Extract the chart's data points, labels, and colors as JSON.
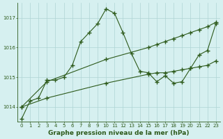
{
  "line1": {
    "x": [
      0,
      1,
      2,
      3,
      4,
      5,
      6,
      7,
      8,
      9,
      10,
      11,
      12,
      13,
      14,
      15,
      16,
      17,
      18,
      19,
      20,
      21,
      22,
      23
    ],
    "y": [
      1013.6,
      1014.2,
      1014.3,
      1014.9,
      1014.9,
      1015.0,
      1015.4,
      1016.2,
      1016.5,
      1016.8,
      1017.3,
      1017.15,
      1016.5,
      1015.8,
      1015.2,
      1015.15,
      1014.85,
      1015.05,
      1014.8,
      1014.85,
      1015.3,
      1015.75,
      1015.9,
      1016.8
    ]
  },
  "line2": {
    "x": [
      0,
      3,
      10,
      15,
      16,
      17,
      18,
      19,
      20,
      21,
      22,
      23
    ],
    "y": [
      1014.0,
      1014.85,
      1015.6,
      1016.0,
      1016.1,
      1016.2,
      1016.3,
      1016.4,
      1016.5,
      1016.6,
      1016.7,
      1016.85
    ]
  },
  "line3": {
    "x": [
      0,
      3,
      10,
      15,
      16,
      17,
      18,
      19,
      20,
      21,
      22,
      23
    ],
    "y": [
      1014.0,
      1014.3,
      1014.8,
      1015.1,
      1015.15,
      1015.15,
      1015.2,
      1015.25,
      1015.3,
      1015.35,
      1015.4,
      1015.55
    ]
  },
  "line_color": "#2d5a1b",
  "bg_color": "#d6f0f0",
  "grid_color": "#aed4d4",
  "xlabel": "Graphe pression niveau de la mer (hPa)",
  "ylim": [
    1013.5,
    1017.5
  ],
  "xlim": [
    -0.5,
    23.5
  ],
  "yticks": [
    1014,
    1015,
    1016,
    1017
  ],
  "xticks": [
    0,
    1,
    2,
    3,
    4,
    5,
    6,
    7,
    8,
    9,
    10,
    11,
    12,
    13,
    14,
    15,
    16,
    17,
    18,
    19,
    20,
    21,
    22,
    23
  ],
  "marker": "+",
  "markersize": 4.0,
  "linewidth": 0.8,
  "tick_fontsize": 5.0,
  "xlabel_fontsize": 6.5
}
